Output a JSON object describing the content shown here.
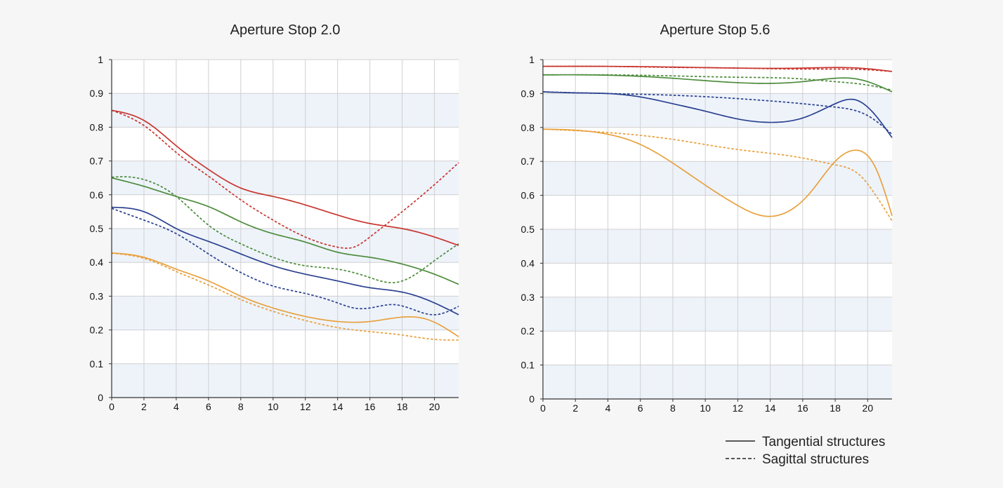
{
  "colors": {
    "page_background": "#f6f6f6",
    "plot_background": "#ffffff",
    "band": "#eef3fa",
    "grid": "#d0d0d0",
    "axis": "#333333",
    "red": "#c8352f",
    "green": "#4c8c3c",
    "blue": "#2a4190",
    "orange": "#e8a13e"
  },
  "legend": {
    "tangential_label": "Tangential structures",
    "sagittal_label": "Sagittal structures"
  },
  "chart_data": [
    {
      "type": "line",
      "title": "Aperture Stop 2.0",
      "xlabel": "",
      "ylabel": "",
      "xlim": [
        0,
        21.5
      ],
      "ylim": [
        0,
        1
      ],
      "x_ticks": [
        0,
        2,
        4,
        6,
        8,
        10,
        12,
        14,
        16,
        18,
        20
      ],
      "x_tick_labels": [
        "0",
        "2",
        "4",
        "6",
        "8",
        "10",
        "12",
        "14",
        "16",
        "18",
        "20"
      ],
      "y_ticks": [
        0,
        0.1,
        0.2,
        0.3,
        0.4,
        0.5,
        0.6,
        0.7,
        0.8,
        0.9,
        1
      ],
      "y_tick_labels": [
        "0",
        "0.1",
        "0.2",
        "0.3",
        "0.4",
        "0.5",
        "0.6",
        "0.7",
        "0.8",
        "0.9",
        "1"
      ],
      "grid": true,
      "series": [
        {
          "name": "red-tangential",
          "color": "red",
          "style": "solid",
          "x": [
            0,
            2,
            4,
            6,
            8,
            10,
            12,
            14,
            16,
            18,
            20,
            21.5
          ],
          "y": [
            0.85,
            0.82,
            0.745,
            0.675,
            0.62,
            0.595,
            0.57,
            0.54,
            0.515,
            0.5,
            0.475,
            0.45
          ]
        },
        {
          "name": "red-sagittal",
          "color": "red",
          "style": "dashed",
          "x": [
            0,
            2,
            4,
            6,
            8,
            10,
            12,
            14,
            15,
            16,
            18,
            20,
            21.5
          ],
          "y": [
            0.85,
            0.805,
            0.725,
            0.655,
            0.585,
            0.525,
            0.475,
            0.445,
            0.445,
            0.475,
            0.55,
            0.63,
            0.695
          ]
        },
        {
          "name": "green-tangential",
          "color": "green",
          "style": "solid",
          "x": [
            0,
            2,
            4,
            6,
            8,
            10,
            12,
            14,
            16,
            18,
            20,
            21.5
          ],
          "y": [
            0.65,
            0.625,
            0.595,
            0.565,
            0.52,
            0.485,
            0.46,
            0.43,
            0.415,
            0.395,
            0.365,
            0.335
          ]
        },
        {
          "name": "green-sagittal",
          "color": "green",
          "style": "dashed",
          "x": [
            0,
            1,
            2,
            4,
            6,
            8,
            10,
            12,
            14,
            16,
            17.5,
            19,
            20,
            21.5
          ],
          "y": [
            0.652,
            0.653,
            0.645,
            0.595,
            0.51,
            0.455,
            0.415,
            0.39,
            0.38,
            0.355,
            0.34,
            0.37,
            0.405,
            0.455
          ]
        },
        {
          "name": "blue-tangential",
          "color": "blue",
          "style": "solid",
          "x": [
            0,
            2,
            4,
            6,
            8,
            10,
            12,
            14,
            16,
            18,
            20,
            21.5
          ],
          "y": [
            0.563,
            0.55,
            0.5,
            0.462,
            0.425,
            0.39,
            0.365,
            0.345,
            0.325,
            0.312,
            0.28,
            0.245
          ]
        },
        {
          "name": "blue-sagittal",
          "color": "blue",
          "style": "dashed",
          "x": [
            0,
            2,
            4,
            6,
            8,
            10,
            12,
            14,
            15,
            16,
            17.5,
            19,
            20,
            21.5
          ],
          "y": [
            0.56,
            0.525,
            0.485,
            0.425,
            0.37,
            0.33,
            0.308,
            0.28,
            0.265,
            0.265,
            0.275,
            0.255,
            0.245,
            0.27
          ]
        },
        {
          "name": "orange-tangential",
          "color": "orange",
          "style": "solid",
          "x": [
            0,
            2,
            4,
            6,
            8,
            10,
            12,
            14,
            16,
            18,
            19.5,
            21.5
          ],
          "y": [
            0.428,
            0.415,
            0.38,
            0.345,
            0.3,
            0.265,
            0.24,
            0.225,
            0.225,
            0.238,
            0.232,
            0.18
          ]
        },
        {
          "name": "orange-sagittal",
          "color": "orange",
          "style": "dashed",
          "x": [
            0,
            2,
            4,
            6,
            8,
            10,
            12,
            14,
            16,
            18,
            20,
            21.5
          ],
          "y": [
            0.427,
            0.412,
            0.373,
            0.333,
            0.29,
            0.255,
            0.228,
            0.207,
            0.195,
            0.185,
            0.172,
            0.17
          ]
        }
      ]
    },
    {
      "type": "line",
      "title": "Aperture Stop 5.6",
      "xlabel": "",
      "ylabel": "",
      "xlim": [
        0,
        21.5
      ],
      "ylim": [
        0,
        1
      ],
      "x_ticks": [
        0,
        2,
        4,
        6,
        8,
        10,
        12,
        14,
        16,
        18,
        20
      ],
      "x_tick_labels": [
        "0",
        "2",
        "4",
        "6",
        "8",
        "10",
        "12",
        "14",
        "16",
        "18",
        "20"
      ],
      "y_ticks": [
        0,
        0.1,
        0.2,
        0.3,
        0.4,
        0.5,
        0.6,
        0.7,
        0.8,
        0.9,
        1
      ],
      "y_tick_labels": [
        "0",
        "0.1",
        "0.2",
        "0.3",
        "0.4",
        "0.5",
        "0.6",
        "0.7",
        "0.8",
        "0.9",
        "1"
      ],
      "grid": true,
      "series": [
        {
          "name": "red-tangential",
          "color": "red",
          "style": "solid",
          "x": [
            0,
            4,
            8,
            12,
            16,
            19,
            20,
            21.5
          ],
          "y": [
            0.98,
            0.98,
            0.978,
            0.975,
            0.975,
            0.976,
            0.973,
            0.965
          ]
        },
        {
          "name": "red-sagittal",
          "color": "red",
          "style": "dashed",
          "x": [
            0,
            4,
            8,
            12,
            16,
            20,
            21.5
          ],
          "y": [
            0.98,
            0.98,
            0.977,
            0.975,
            0.972,
            0.97,
            0.965
          ]
        },
        {
          "name": "green-tangential",
          "color": "green",
          "style": "solid",
          "x": [
            0,
            4,
            8,
            12,
            14,
            16,
            18,
            19,
            20,
            21.5
          ],
          "y": [
            0.955,
            0.954,
            0.945,
            0.932,
            0.93,
            0.935,
            0.945,
            0.945,
            0.935,
            0.905
          ]
        },
        {
          "name": "green-sagittal",
          "color": "green",
          "style": "dashed",
          "x": [
            0,
            4,
            8,
            12,
            16,
            18,
            20,
            21.5
          ],
          "y": [
            0.955,
            0.955,
            0.952,
            0.948,
            0.943,
            0.935,
            0.925,
            0.91
          ]
        },
        {
          "name": "blue-tangential",
          "color": "blue",
          "style": "solid",
          "x": [
            0,
            2,
            4,
            6,
            8,
            10,
            12,
            14,
            16,
            18,
            19.2,
            20,
            21.5
          ],
          "y": [
            0.905,
            0.902,
            0.9,
            0.89,
            0.87,
            0.848,
            0.825,
            0.815,
            0.828,
            0.87,
            0.882,
            0.86,
            0.77
          ]
        },
        {
          "name": "blue-sagittal",
          "color": "blue",
          "style": "dashed",
          "x": [
            0,
            4,
            8,
            12,
            16,
            18,
            20,
            21.5
          ],
          "y": [
            0.905,
            0.9,
            0.895,
            0.885,
            0.87,
            0.86,
            0.835,
            0.78
          ]
        },
        {
          "name": "orange-tangential",
          "color": "orange",
          "style": "solid",
          "x": [
            0,
            2,
            4,
            6,
            8,
            10,
            12,
            13.5,
            15,
            16.5,
            18,
            19.3,
            20.5,
            21.5
          ],
          "y": [
            0.795,
            0.792,
            0.78,
            0.75,
            0.695,
            0.63,
            0.57,
            0.54,
            0.55,
            0.61,
            0.7,
            0.733,
            0.68,
            0.54
          ]
        },
        {
          "name": "orange-sagittal",
          "color": "orange",
          "style": "dashed",
          "x": [
            0,
            4,
            8,
            12,
            16,
            18,
            19.5,
            20.5,
            21.5
          ],
          "y": [
            0.795,
            0.785,
            0.765,
            0.735,
            0.71,
            0.69,
            0.66,
            0.6,
            0.525
          ]
        }
      ]
    }
  ]
}
